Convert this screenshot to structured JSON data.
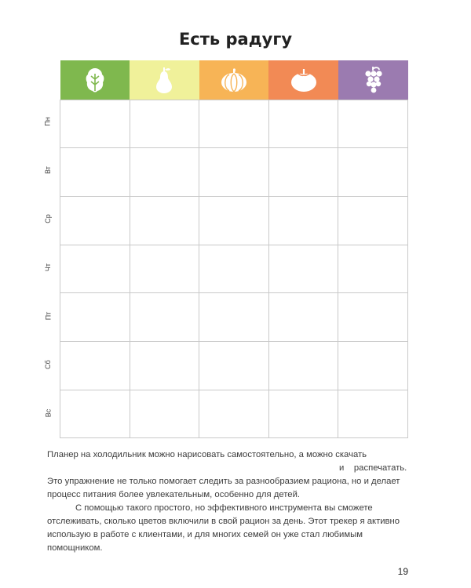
{
  "page": {
    "title": "Есть радугу",
    "page_number": "19"
  },
  "columns": [
    {
      "icon": "lettuce-icon",
      "color": "#7fb84e"
    },
    {
      "icon": "pear-icon",
      "color": "#f0f19a"
    },
    {
      "icon": "pumpkin-icon",
      "color": "#f7b456"
    },
    {
      "icon": "tomato-icon",
      "color": "#f28a55"
    },
    {
      "icon": "grapes-icon",
      "color": "#9b7bb0"
    }
  ],
  "days": [
    "Пн",
    "Вт",
    "Ср",
    "Чт",
    "Пт",
    "Сб",
    "Вс"
  ],
  "paragraphs": {
    "p1_line1": "Планер на холодильник можно нарисовать самостоятельно, а можно скачать",
    "p1_line2": "и",
    "p1_line2b": "распечатать.",
    "p2": "Это упражнение не только помогает следить за разнообразием рациона, но и делает процесс питания более увлекательным, особенно для детей.",
    "p3": "С помощью такого простого, но эффективного инструмента вы сможете отслеживать, сколько цветов включили в свой рацион за день. Этот трекер я активно использую в работе с клиентами, и для многих семей он уже стал любимым помощником."
  }
}
